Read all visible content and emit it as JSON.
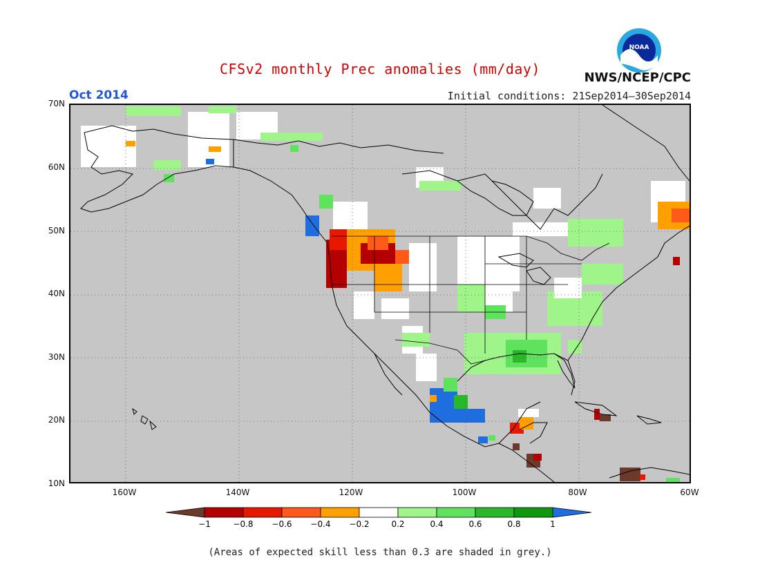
{
  "title": "CFSv2 monthly Prec anomalies (mm/day)",
  "title_color": "#d40000",
  "month_label": "Oct 2014",
  "month_color": "#2255dd",
  "initial_conditions": "Initial conditions: 21Sep2014–30Sep2014",
  "organization": "NWS/NCEP/CPC",
  "logo_text": "NOAA",
  "footnote": "(Areas of expected skill less than 0.3 are shaded in grey.)",
  "lat_labels": [
    "70N",
    "60N",
    "50N",
    "40N",
    "30N",
    "20N",
    "10N"
  ],
  "lon_labels": [
    "160W",
    "140W",
    "120W",
    "100W",
    "80W",
    "60W"
  ],
  "colorbar": {
    "colors": [
      "#6b3a2a",
      "#b40000",
      "#e81800",
      "#ff5a1a",
      "#ff9f00",
      "#ffffff",
      "#9ff58a",
      "#5fe35f",
      "#28b828",
      "#0c9a0c",
      "#1e6ee0"
    ],
    "labels": [
      "−1",
      "−0.8",
      "−0.6",
      "−0.4",
      "−0.2",
      "0.2",
      "0.4",
      "0.6",
      "0.8",
      "1"
    ]
  },
  "map_colors": {
    "grey": "#c6c6c6",
    "white": "#ffffff",
    "lightgreen": "#9ff58a",
    "green": "#5fe35f",
    "darkgreen": "#28b828",
    "blue": "#1e6ee0",
    "orange": "#ff9f00",
    "redorange": "#ff5a1a",
    "red": "#e81800",
    "darkred": "#b40000",
    "brown": "#6b3a2a"
  }
}
